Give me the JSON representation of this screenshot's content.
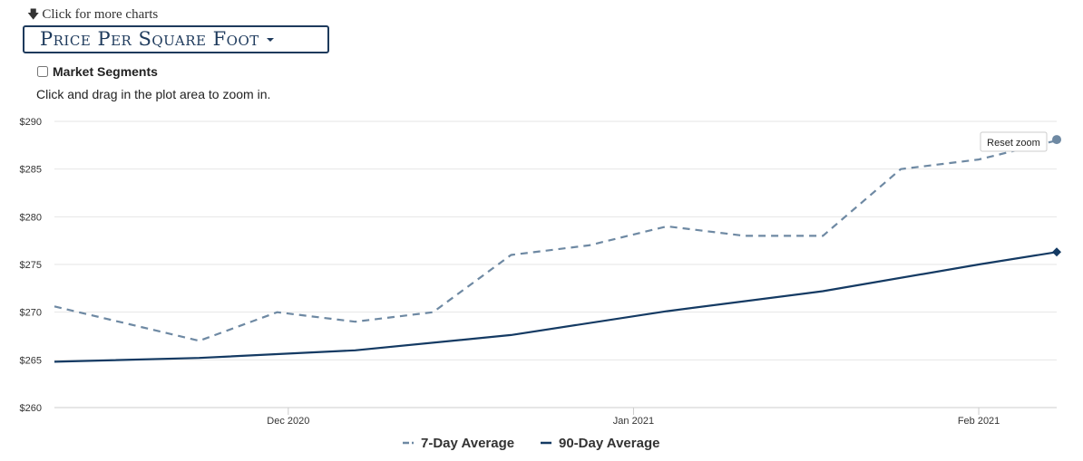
{
  "header": {
    "more_charts_link": "Click for more charts",
    "chart_selector_label": "Price Per Square Foot",
    "market_segments_label": "Market Segments",
    "zoom_hint": "Click and drag in the plot area to zoom in.",
    "reset_zoom_label": "Reset zoom"
  },
  "colors": {
    "seven_day": "#6e89a3",
    "ninety_day": "#143a63",
    "grid": "#e6e6e6",
    "axis_text": "#333333"
  },
  "chart_data": {
    "type": "line",
    "x_ticks": [
      "Dec 2020",
      "Jan 2021",
      "Feb 2021"
    ],
    "y_ticks": [
      "$260",
      "$265",
      "$270",
      "$275",
      "$280",
      "$285",
      "$290"
    ],
    "ylim": [
      260,
      290
    ],
    "xlim": [
      "2020-11-10",
      "2021-02-08"
    ],
    "grid": true,
    "legend_position": "bottom-center",
    "series": [
      {
        "name": "7-Day Average",
        "style": "dashed",
        "x": [
          "2020-11-10",
          "2020-11-23",
          "2020-11-30",
          "2020-12-07",
          "2020-12-14",
          "2020-12-21",
          "2020-12-28",
          "2021-01-04",
          "2021-01-11",
          "2021-01-18",
          "2021-01-25",
          "2021-02-01",
          "2021-02-08"
        ],
        "values": [
          270.6,
          267.0,
          270.0,
          269.0,
          270.0,
          276.0,
          277.0,
          279.0,
          278.0,
          278.0,
          285.0,
          286.0,
          288.0
        ]
      },
      {
        "name": "90-Day Average",
        "style": "solid",
        "x": [
          "2020-11-10",
          "2020-11-23",
          "2020-12-07",
          "2020-12-21",
          "2021-01-04",
          "2021-01-18",
          "2021-02-01",
          "2021-02-08"
        ],
        "values": [
          264.8,
          265.2,
          266.0,
          267.6,
          270.1,
          272.2,
          275.0,
          276.3
        ]
      }
    ]
  }
}
